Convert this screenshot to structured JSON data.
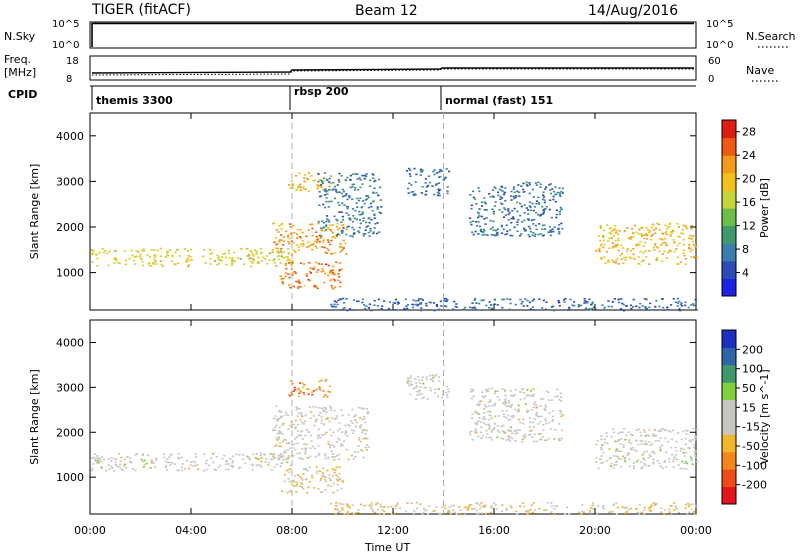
{
  "header": {
    "radar": "TIGER (fitACF)",
    "beam": "Beam 12",
    "date": "14/Aug/2016"
  },
  "top_panels": {
    "nsky_label": "N.Sky",
    "nsky_ticks": [
      "10^5",
      "10^0"
    ],
    "nsearch_label": "N.Search",
    "nsearch_ticks": [
      "10^5",
      "10^0"
    ],
    "freq_label": "Freq.",
    "freq_unit": "[MHz]",
    "freq_ticks": [
      "18",
      "8"
    ],
    "nave_label": "Nave",
    "nave_ticks": [
      "60",
      "0"
    ],
    "cpid_label": "CPID",
    "cpid_segments": [
      {
        "name": "themis 3300",
        "start": "00:00"
      },
      {
        "name": "rbsp 200",
        "start": "08:00"
      },
      {
        "name": "normal (fast) 151",
        "start": "14:00"
      }
    ]
  },
  "chart_data": [
    {
      "type": "heatmap",
      "title": "",
      "xlabel": "Time UT",
      "ylabel": "Slant Range [km]",
      "x_ticks": [
        "00:00",
        "04:00",
        "08:00",
        "12:00",
        "16:00",
        "20:00",
        "00:00"
      ],
      "y_ticks": [
        1000,
        2000,
        3000,
        4000
      ],
      "xlim": [
        0,
        24
      ],
      "ylim": [
        180,
        4500
      ],
      "colorbar": {
        "label": "Power [dB]",
        "ticks": [
          4,
          8,
          12,
          16,
          20,
          24,
          28
        ],
        "range": [
          0,
          30
        ],
        "colors": [
          "#1b22e6",
          "#2c4db8",
          "#3c7db0",
          "#3e9a6a",
          "#6cbf4b",
          "#c6d63a",
          "#f2c21b",
          "#f39a1a",
          "#ee5a14",
          "#e01b10"
        ]
      },
      "regions": [
        {
          "t": [
            0.0,
            8.0
          ],
          "r": [
            1150,
            1550
          ],
          "value": 18
        },
        {
          "t": [
            7.2,
            10.2
          ],
          "r": [
            1400,
            2100
          ],
          "value": 22
        },
        {
          "t": [
            7.5,
            10.0
          ],
          "r": [
            650,
            1250
          ],
          "value": 24
        },
        {
          "t": [
            7.8,
            9.5
          ],
          "r": [
            2800,
            3200
          ],
          "value": 20
        },
        {
          "t": [
            9.0,
            11.5
          ],
          "r": [
            1800,
            3200
          ],
          "value": 8
        },
        {
          "t": [
            12.5,
            14.2
          ],
          "r": [
            2700,
            3300
          ],
          "value": 6
        },
        {
          "t": [
            15.0,
            18.7
          ],
          "r": [
            1800,
            3000
          ],
          "value": 7
        },
        {
          "t": [
            20.0,
            24.0
          ],
          "r": [
            1200,
            2100
          ],
          "value": 20
        },
        {
          "t": [
            9.5,
            24.0
          ],
          "r": [
            180,
            450
          ],
          "value": 6
        }
      ],
      "cpid_changes": [
        "08:00",
        "14:00"
      ]
    },
    {
      "type": "heatmap",
      "title": "",
      "xlabel": "Time UT",
      "ylabel": "Slant Range [km]",
      "x_ticks": [
        "00:00",
        "04:00",
        "08:00",
        "12:00",
        "16:00",
        "20:00",
        "00:00"
      ],
      "y_ticks": [
        1000,
        2000,
        3000,
        4000
      ],
      "xlim": [
        0,
        24
      ],
      "ylim": [
        180,
        4500
      ],
      "colorbar": {
        "label": "Velocity [m s^-1]",
        "ticks": [
          200,
          100,
          50,
          15,
          -15,
          -50,
          -100,
          -200
        ],
        "range": [
          -250,
          250
        ],
        "colors": [
          "#e5141a",
          "#ee4a1a",
          "#f3871d",
          "#f3b52a",
          "#c8c8c0",
          "#c8c8c0",
          "#7fcf3f",
          "#3e9a6a",
          "#2f64a8",
          "#1b30c0"
        ]
      },
      "regions": [
        {
          "t": [
            0.0,
            8.0
          ],
          "r": [
            1150,
            1550
          ],
          "value": 0
        },
        {
          "t": [
            7.2,
            11.0
          ],
          "r": [
            1400,
            2600
          ],
          "value": -5
        },
        {
          "t": [
            7.5,
            10.0
          ],
          "r": [
            650,
            1250
          ],
          "value": -30
        },
        {
          "t": [
            7.8,
            9.5
          ],
          "r": [
            2800,
            3200
          ],
          "value": -120
        },
        {
          "t": [
            12.5,
            14.2
          ],
          "r": [
            2700,
            3300
          ],
          "value": 5
        },
        {
          "t": [
            15.0,
            18.7
          ],
          "r": [
            1800,
            3000
          ],
          "value": 0
        },
        {
          "t": [
            20.0,
            24.0
          ],
          "r": [
            1200,
            2100
          ],
          "value": 0
        },
        {
          "t": [
            9.5,
            24.0
          ],
          "r": [
            180,
            450
          ],
          "value": -40
        }
      ],
      "cpid_changes": [
        "08:00",
        "14:00"
      ]
    }
  ],
  "colors": {
    "axis": "#000000",
    "cpid_line": "#b0b0b0"
  }
}
